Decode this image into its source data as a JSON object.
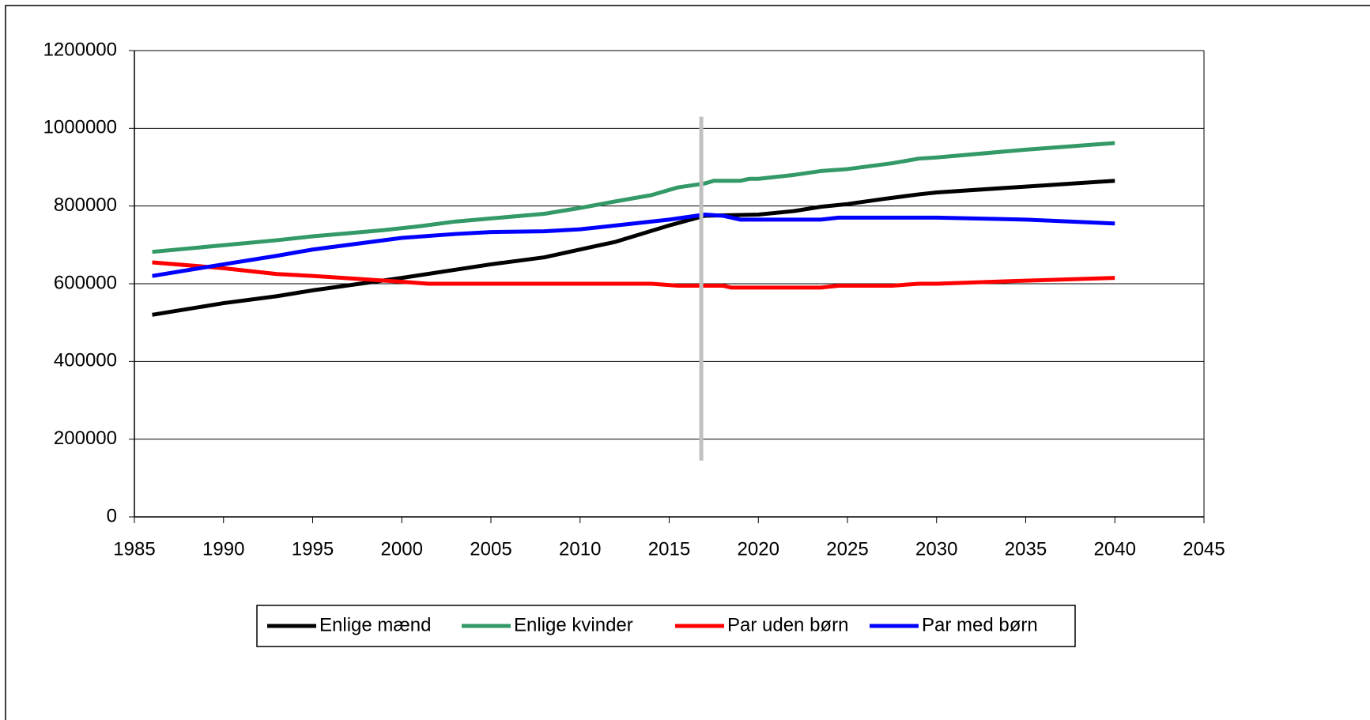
{
  "chart_data": {
    "type": "line",
    "xlim": [
      1985,
      2045
    ],
    "xticks": [
      1985,
      1990,
      1995,
      2000,
      2005,
      2010,
      2015,
      2020,
      2025,
      2030,
      2035,
      2040,
      2045
    ],
    "ylim": [
      0,
      1200000
    ],
    "yticks": [
      0,
      200000,
      400000,
      600000,
      800000,
      1000000,
      1200000
    ],
    "grid": true,
    "legend": "bottom",
    "series": [
      {
        "name": "Enlige mænd",
        "color": "#000000",
        "x": [
          1986,
          1990,
          1993,
          1995,
          2000,
          2005,
          2008,
          2010,
          2012,
          2015,
          2017,
          2020,
          2022,
          2023.5,
          2025,
          2027,
          2029,
          2030,
          2035,
          2040
        ],
        "values": [
          520000,
          550000,
          568000,
          583000,
          615000,
          650000,
          668000,
          688000,
          708000,
          750000,
          775000,
          778000,
          787000,
          798000,
          805000,
          818000,
          830000,
          835000,
          850000,
          865000
        ]
      },
      {
        "name": "Enlige kvinder",
        "color": "#339966",
        "x": [
          1986,
          1993,
          1995,
          1997,
          1999,
          2001,
          2003,
          2005,
          2008,
          2010,
          2012,
          2014,
          2015.5,
          2017,
          2017.5,
          2019,
          2019.5,
          2020,
          2022,
          2023.5,
          2025,
          2027.5,
          2029,
          2030,
          2035,
          2040
        ],
        "values": [
          682000,
          712000,
          722000,
          730000,
          738000,
          748000,
          760000,
          768000,
          780000,
          795000,
          812000,
          828000,
          848000,
          858000,
          865000,
          865000,
          870000,
          870000,
          880000,
          890000,
          895000,
          910000,
          922000,
          925000,
          945000,
          962000
        ]
      },
      {
        "name": "Par uden børn",
        "color": "#ff0000",
        "x": [
          1986,
          1990,
          1993,
          1995,
          2000,
          2001.5,
          2014,
          2015.5,
          2018,
          2018.5,
          2023.5,
          2024.5,
          2027.5,
          2029,
          2030,
          2035,
          2040
        ],
        "values": [
          655000,
          640000,
          625000,
          620000,
          605000,
          600000,
          600000,
          595000,
          595000,
          590000,
          590000,
          595000,
          595000,
          600000,
          600000,
          608000,
          615000
        ]
      },
      {
        "name": "Par med børn",
        "color": "#0000ff",
        "x": [
          1986,
          1990,
          1993,
          1995,
          2000,
          2003,
          2005,
          2008,
          2010,
          2015,
          2017,
          2018,
          2019,
          2023.5,
          2024.5,
          2030,
          2035,
          2040
        ],
        "values": [
          620000,
          650000,
          672000,
          688000,
          718000,
          728000,
          733000,
          735000,
          740000,
          765000,
          778000,
          775000,
          765000,
          765000,
          770000,
          770000,
          765000,
          755000
        ]
      }
    ],
    "vline": {
      "x": 2016.8,
      "y": [
        145000,
        1030000
      ],
      "color": "#c0c0c0"
    }
  }
}
